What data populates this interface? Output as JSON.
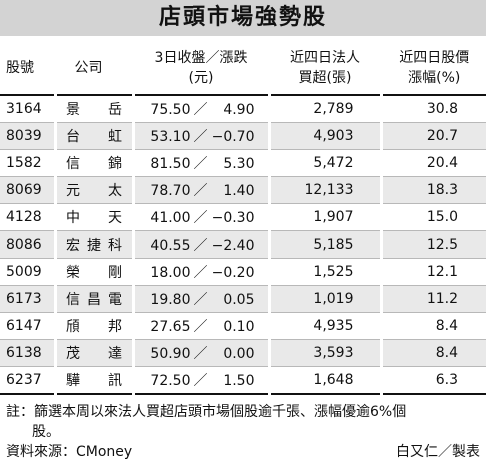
{
  "title": "店頭市場強勢股",
  "headers": {
    "code": "股號",
    "name": "公司",
    "price_line1": "3日收盤／漲跌",
    "price_line2": "(元)",
    "inst_line1": "近四日法人",
    "inst_line2": "買超(張)",
    "pct_line1": "近四日股價",
    "pct_line2": "漲幅(%)"
  },
  "rows": [
    {
      "code": "3164",
      "name": "景岳",
      "close": "75.50",
      "change": "4.90",
      "inst_buy": "2,789",
      "pct": "30.8"
    },
    {
      "code": "8039",
      "name": "台虹",
      "close": "53.10",
      "change": "−0.70",
      "inst_buy": "4,903",
      "pct": "20.7"
    },
    {
      "code": "1582",
      "name": "信錦",
      "close": "81.50",
      "change": "5.30",
      "inst_buy": "5,472",
      "pct": "20.4"
    },
    {
      "code": "8069",
      "name": "元太",
      "close": "78.70",
      "change": "1.40",
      "inst_buy": "12,133",
      "pct": "18.3"
    },
    {
      "code": "4128",
      "name": "中天",
      "close": "41.00",
      "change": "−0.30",
      "inst_buy": "1,907",
      "pct": "15.0"
    },
    {
      "code": "8086",
      "name": "宏捷科",
      "close": "40.55",
      "change": "−2.40",
      "inst_buy": "5,185",
      "pct": "12.5"
    },
    {
      "code": "5009",
      "name": "榮剛",
      "close": "18.00",
      "change": "−0.20",
      "inst_buy": "1,525",
      "pct": "12.1"
    },
    {
      "code": "6173",
      "name": "信昌電",
      "close": "19.80",
      "change": "0.05",
      "inst_buy": "1,019",
      "pct": "11.2"
    },
    {
      "code": "6147",
      "name": "頎邦",
      "close": "27.65",
      "change": "0.10",
      "inst_buy": "4,935",
      "pct": "8.4"
    },
    {
      "code": "6138",
      "name": "茂達",
      "close": "50.90",
      "change": "0.00",
      "inst_buy": "3,593",
      "pct": "8.4"
    },
    {
      "code": "6237",
      "name": "驊訊",
      "close": "72.50",
      "change": "1.50",
      "inst_buy": "1,648",
      "pct": "6.3"
    }
  ],
  "price_separator": "／",
  "note_line1": "註：篩選本周以來法人買超店頭市場個股逾千張、漲幅優逾6%個",
  "note_line2": "股。",
  "source": "資料來源：CMoney",
  "credit": "白又仁／製表",
  "colors": {
    "title_bg": "#d3d3d3",
    "shaded_row": "#e9e9e9",
    "rule": "#111111"
  }
}
